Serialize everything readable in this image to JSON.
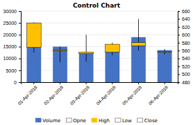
{
  "chart_data": {
    "type": "candlestick",
    "title": "Control Chart",
    "categories": [
      "01-Apr-2019",
      "02-Apr-2019",
      "03-Apr-2019",
      "04-Apr-2019",
      "05-Apr-2019",
      "06-Apr-2019"
    ],
    "series": [
      {
        "name": "Volume",
        "type": "bar",
        "color": "#4472C4",
        "values": [
          17000,
          15000,
          12500,
          13000,
          19000,
          13500
        ]
      },
      {
        "name": "Opne",
        "type": "candlestick",
        "axis": "y2",
        "color": "#FFFFFF",
        "values": [
          568,
          560,
          552,
          556,
          572,
          556
        ]
      },
      {
        "name": "High",
        "type": "candlestick",
        "axis": "y2",
        "color": "#FFC000",
        "values": [
          632,
          570,
          600,
          580,
          640,
          564
        ]
      },
      {
        "name": "Low",
        "type": "candlestick",
        "axis": "y2",
        "color": "#FFFFFF",
        "values": [
          555,
          530,
          532,
          548,
          560,
          550
        ]
      },
      {
        "name": "Close",
        "type": "candlestick",
        "axis": "y2",
        "color": "#FFFFFF",
        "colors": [
          "#FFC000",
          "#FFC000",
          "#FFC000",
          "#FFC000",
          "#FFC000",
          "#FFC000"
        ],
        "values": [
          630,
          562,
          556,
          576,
          580,
          558
        ]
      }
    ],
    "ylim": [
      0,
      30000
    ],
    "yticks": [
      0,
      5000,
      10000,
      15000,
      20000,
      25000,
      30000
    ],
    "y2lim": [
      480,
      660
    ],
    "y2ticks": [
      480,
      500,
      520,
      540,
      560,
      580,
      600,
      620,
      640,
      660
    ],
    "grid": true,
    "legend": "bottom"
  }
}
